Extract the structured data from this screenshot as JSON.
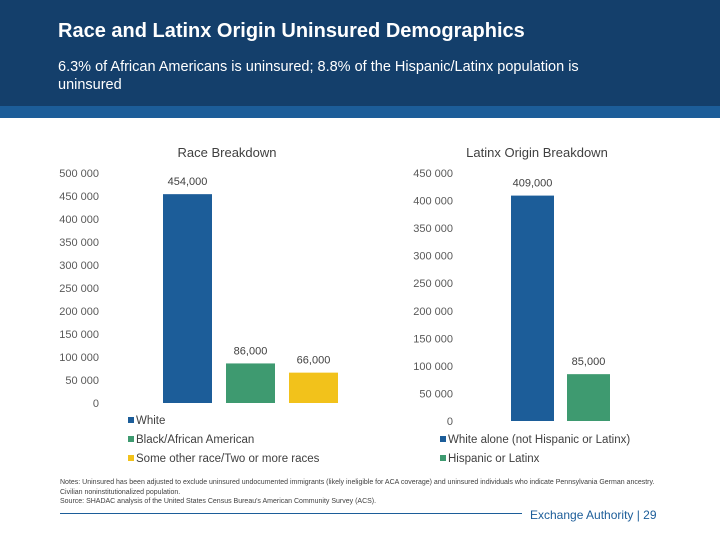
{
  "slide": {
    "title": "Race and Latinx Origin Uninsured Demographics",
    "subtitle": "6.3% of African Americans is uninsured; 8.8% of the Hispanic/Latinx population is uninsured",
    "notes_line1": "Notes: Uninsured has been adjusted to exclude uninsured undocumented immigrants (likely ineligible for ACA coverage) and uninsured individuals who indicate Pennsylvania German ancestry. Civilian noninstitutionalized population.",
    "notes_line2": "Source: SHADAC analysis of the United States Census Bureau's American Community Survey (ACS).",
    "footer": "Exchange Authority  |  29"
  },
  "chart_data": [
    {
      "type": "bar",
      "title": "Race Breakdown",
      "ylim": [
        0,
        500000
      ],
      "yticks": [
        0,
        50000,
        100000,
        150000,
        200000,
        250000,
        300000,
        350000,
        400000,
        450000,
        500000
      ],
      "ytick_labels": [
        "0",
        "50 000",
        "100 000",
        "150 000",
        "200 000",
        "250 000",
        "300 000",
        "350 000",
        "400 000",
        "450 000",
        "500 000"
      ],
      "grid": false,
      "legend_position": "bottom",
      "series": [
        {
          "name": "White",
          "value": 454000,
          "label": "454,000",
          "color": "#1c5d99"
        },
        {
          "name": "Black/African American",
          "value": 86000,
          "label": "86,000",
          "color": "#3e9a70"
        },
        {
          "name": "Some other race/Two or more races",
          "value": 66000,
          "label": "66,000",
          "color": "#f2c21b"
        }
      ]
    },
    {
      "type": "bar",
      "title": "Latinx Origin Breakdown",
      "ylim": [
        0,
        450000
      ],
      "yticks": [
        0,
        50000,
        100000,
        150000,
        200000,
        250000,
        300000,
        350000,
        400000,
        450000
      ],
      "ytick_labels": [
        "0",
        "50 000",
        "100 000",
        "150 000",
        "200 000",
        "250 000",
        "300 000",
        "350 000",
        "400 000",
        "450 000"
      ],
      "grid": false,
      "legend_position": "bottom",
      "series": [
        {
          "name": "White alone (not Hispanic or Latinx)",
          "value": 409000,
          "label": "409,000",
          "color": "#1c5d99"
        },
        {
          "name": "Hispanic or Latinx",
          "value": 85000,
          "label": "85,000",
          "color": "#3e9a70"
        }
      ]
    }
  ]
}
